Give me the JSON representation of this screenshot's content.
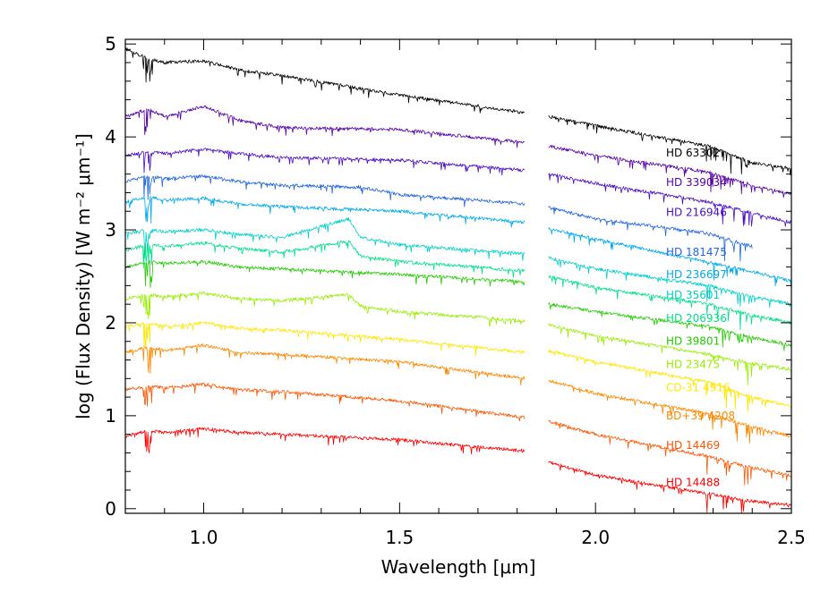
{
  "chart_data": {
    "type": "line",
    "title": "",
    "xlabel": "Wavelength [μm]",
    "ylabel": "log (Flux Density) [W m⁻² μm⁻¹]",
    "xlim": [
      0.8,
      2.5
    ],
    "ylim": [
      -0.05,
      5.05
    ],
    "x_ticks": [
      {
        "value": 1.0,
        "label": "1.0"
      },
      {
        "value": 1.5,
        "label": "1.5"
      },
      {
        "value": 2.0,
        "label": "2.0"
      },
      {
        "value": 2.5,
        "label": "2.5"
      }
    ],
    "y_ticks": [
      {
        "value": 0,
        "label": "0"
      },
      {
        "value": 1,
        "label": "1"
      },
      {
        "value": 2,
        "label": "2"
      },
      {
        "value": 3,
        "label": "3"
      },
      {
        "value": 4,
        "label": "4"
      },
      {
        "value": 5,
        "label": "5"
      }
    ],
    "gap": [
      1.82,
      1.88
    ],
    "series": [
      {
        "name": "HD 63302",
        "color": "#000000",
        "x": [
          0.8,
          0.86,
          0.9,
          1.0,
          1.09,
          1.2,
          1.5,
          1.82,
          1.88,
          2.0,
          2.29,
          2.4,
          2.5
        ],
        "y": [
          4.95,
          4.84,
          4.8,
          4.82,
          4.72,
          4.66,
          4.45,
          4.26,
          4.22,
          4.12,
          3.9,
          3.72,
          3.66
        ],
        "label_pos": [
          2.18,
          3.83
        ]
      },
      {
        "name": "HD 339034",
        "color": "#5500aa",
        "x": [
          0.8,
          0.86,
          0.9,
          1.0,
          1.09,
          1.2,
          1.5,
          1.82,
          1.88,
          2.0,
          2.29,
          2.4,
          2.5
        ],
        "y": [
          4.22,
          4.3,
          4.22,
          4.33,
          4.18,
          4.1,
          4.08,
          3.94,
          3.9,
          3.8,
          3.62,
          3.48,
          3.38
        ],
        "label_pos": [
          2.18,
          3.51
        ]
      },
      {
        "name": "HD 216946",
        "color": "#4a0dc4",
        "x": [
          0.8,
          0.86,
          0.9,
          1.0,
          1.09,
          1.2,
          1.5,
          1.82,
          1.88,
          2.0,
          2.29,
          2.4,
          2.5
        ],
        "y": [
          3.8,
          3.84,
          3.82,
          3.87,
          3.82,
          3.78,
          3.75,
          3.64,
          3.6,
          3.5,
          3.3,
          3.18,
          3.08
        ],
        "label_pos": [
          2.18,
          3.19
        ]
      },
      {
        "name": "HD 181475",
        "color": "#2266dd",
        "x": [
          0.8,
          0.86,
          0.9,
          1.0,
          1.09,
          1.2,
          1.4,
          1.5,
          1.82,
          1.88,
          2.0,
          2.29,
          2.4
        ],
        "y": [
          3.52,
          3.58,
          3.55,
          3.58,
          3.52,
          3.48,
          3.46,
          3.38,
          3.28,
          3.24,
          3.12,
          2.96,
          2.82
        ],
        "label_pos": [
          2.18,
          2.76
        ]
      },
      {
        "name": "HD 236697",
        "color": "#00aaee",
        "x": [
          0.8,
          0.86,
          0.9,
          1.0,
          1.09,
          1.2,
          1.5,
          1.82,
          1.88,
          2.0,
          2.29,
          2.4,
          2.5
        ],
        "y": [
          3.3,
          3.36,
          3.32,
          3.34,
          3.28,
          3.25,
          3.2,
          3.08,
          3.02,
          2.9,
          2.65,
          2.55,
          2.45
        ],
        "label_pos": [
          2.18,
          2.52
        ]
      },
      {
        "name": "HD 35601",
        "color": "#00d0cc",
        "x": [
          0.8,
          0.86,
          0.9,
          1.0,
          1.09,
          1.2,
          1.37,
          1.4,
          1.5,
          1.82,
          1.88,
          2.0,
          2.29,
          2.4,
          2.5
        ],
        "y": [
          2.96,
          3.0,
          2.98,
          3.0,
          2.95,
          2.92,
          3.12,
          2.92,
          2.84,
          2.74,
          2.7,
          2.58,
          2.4,
          2.28,
          2.2
        ],
        "label_pos": [
          2.18,
          2.3
        ]
      },
      {
        "name": "HD 206936",
        "color": "#00e08a",
        "x": [
          0.8,
          0.86,
          0.9,
          1.0,
          1.09,
          1.2,
          1.37,
          1.4,
          1.5,
          1.82,
          1.88,
          2.0,
          2.29,
          2.4,
          2.5
        ],
        "y": [
          2.78,
          2.84,
          2.82,
          2.86,
          2.8,
          2.76,
          2.88,
          2.72,
          2.66,
          2.56,
          2.5,
          2.38,
          2.2,
          2.08,
          2.0
        ],
        "label_pos": [
          2.18,
          2.05
        ]
      },
      {
        "name": "HD 39801",
        "color": "#22cc00",
        "x": [
          0.8,
          0.86,
          0.9,
          1.0,
          1.09,
          1.2,
          1.5,
          1.82,
          1.88,
          2.0,
          2.29,
          2.4,
          2.5
        ],
        "y": [
          2.6,
          2.66,
          2.64,
          2.66,
          2.6,
          2.58,
          2.52,
          2.44,
          2.2,
          2.12,
          1.96,
          1.84,
          1.76
        ],
        "label_pos": [
          2.18,
          1.8
        ]
      },
      {
        "name": "HD 23475",
        "color": "#99ee00",
        "x": [
          0.8,
          0.86,
          0.9,
          1.0,
          1.09,
          1.2,
          1.37,
          1.4,
          1.5,
          1.82,
          1.88,
          2.0,
          2.29,
          2.4,
          2.5
        ],
        "y": [
          2.26,
          2.3,
          2.28,
          2.32,
          2.26,
          2.24,
          2.3,
          2.18,
          2.12,
          2.02,
          1.98,
          1.86,
          1.66,
          1.56,
          1.5
        ],
        "label_pos": [
          2.18,
          1.55
        ]
      },
      {
        "name": "CD-31 4916",
        "color": "#ffe600",
        "x": [
          0.8,
          0.86,
          0.9,
          1.0,
          1.09,
          1.2,
          1.5,
          1.82,
          1.88,
          2.0,
          2.29,
          2.4,
          2.5
        ],
        "y": [
          1.96,
          2.0,
          1.96,
          2.0,
          1.94,
          1.92,
          1.82,
          1.68,
          1.7,
          1.58,
          1.36,
          1.2,
          1.1
        ],
        "label_pos": [
          2.18,
          1.3
        ]
      },
      {
        "name": "BD+39 4208",
        "color": "#ff8800",
        "x": [
          0.8,
          0.86,
          0.9,
          1.0,
          1.09,
          1.2,
          1.5,
          1.82,
          1.88,
          2.0,
          2.29,
          2.4,
          2.5
        ],
        "y": [
          1.68,
          1.74,
          1.7,
          1.76,
          1.68,
          1.66,
          1.58,
          1.4,
          1.38,
          1.24,
          1.02,
          0.88,
          0.78
        ],
        "label_pos": [
          2.18,
          1.0
        ]
      },
      {
        "name": "HD 14469",
        "color": "#ff5500",
        "x": [
          0.8,
          0.86,
          0.9,
          1.0,
          1.09,
          1.2,
          1.5,
          1.82,
          1.88,
          2.0,
          2.29,
          2.4,
          2.5
        ],
        "y": [
          1.28,
          1.32,
          1.3,
          1.34,
          1.28,
          1.26,
          1.16,
          0.98,
          0.94,
          0.8,
          0.56,
          0.44,
          0.36
        ],
        "label_pos": [
          2.18,
          0.68
        ]
      },
      {
        "name": "HD 14488",
        "color": "#ff0000",
        "x": [
          0.8,
          0.86,
          0.9,
          1.0,
          1.09,
          1.2,
          1.5,
          1.82,
          1.88,
          2.0,
          2.29,
          2.4,
          2.5
        ],
        "y": [
          0.78,
          0.84,
          0.82,
          0.86,
          0.82,
          0.8,
          0.74,
          0.62,
          0.5,
          0.36,
          0.16,
          0.08,
          0.04
        ],
        "label_pos": [
          2.18,
          0.28
        ]
      }
    ]
  }
}
